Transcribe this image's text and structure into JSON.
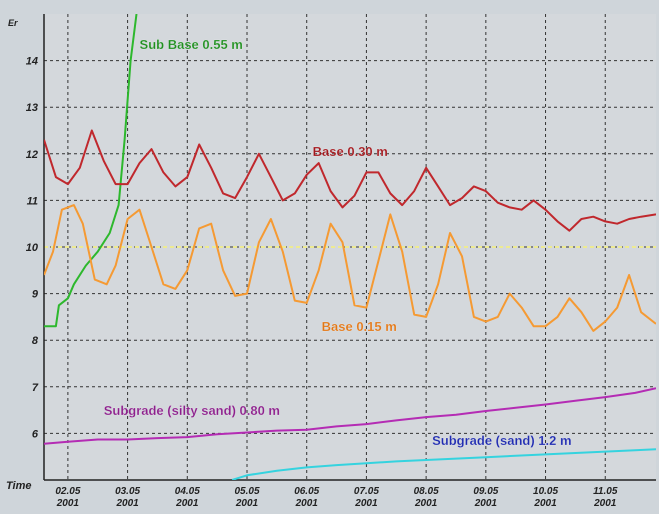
{
  "chart_data": {
    "type": "line",
    "ylabel": "Er",
    "xlabel": "Time",
    "ylim": [
      5,
      15
    ],
    "yticks": [
      6,
      7,
      8,
      9,
      10,
      11,
      12,
      13,
      14
    ],
    "x_ticks": [
      {
        "top": "02.05",
        "bottom": "2001"
      },
      {
        "top": "03.05",
        "bottom": "2001"
      },
      {
        "top": "04.05",
        "bottom": "2001"
      },
      {
        "top": "05.05",
        "bottom": "2001"
      },
      {
        "top": "06.05",
        "bottom": "2001"
      },
      {
        "top": "07.05",
        "bottom": "2001"
      },
      {
        "top": "08.05",
        "bottom": "2001"
      },
      {
        "top": "09.05",
        "bottom": "2001"
      },
      {
        "top": "10.05",
        "bottom": "2001"
      },
      {
        "top": "11.05",
        "bottom": "2001"
      }
    ],
    "xlim": [
      0.6,
      10.85
    ],
    "grid": true,
    "reference_line": {
      "y": 10,
      "color": "#f5f07a"
    },
    "series": [
      {
        "name": "Sub Base 0.55 m",
        "color": "#2db82d",
        "x": [
          0.6,
          0.8,
          0.85,
          1.0,
          1.1,
          1.3,
          1.5,
          1.7,
          1.85,
          1.95,
          2.05,
          2.15
        ],
        "y": [
          8.3,
          8.3,
          8.75,
          8.9,
          9.2,
          9.6,
          9.9,
          10.3,
          10.9,
          12.3,
          14.0,
          15.0
        ]
      },
      {
        "name": "Base 0.30 m",
        "color": "#c0282d",
        "x": [
          0.6,
          0.8,
          1.0,
          1.2,
          1.4,
          1.6,
          1.8,
          2.0,
          2.2,
          2.4,
          2.6,
          2.8,
          3.0,
          3.2,
          3.4,
          3.6,
          3.8,
          4.0,
          4.2,
          4.4,
          4.6,
          4.8,
          5.0,
          5.2,
          5.4,
          5.6,
          5.8,
          6.0,
          6.2,
          6.4,
          6.6,
          6.8,
          7.0,
          7.2,
          7.4,
          7.6,
          7.8,
          8.0,
          8.2,
          8.4,
          8.6,
          8.8,
          9.0,
          9.2,
          9.4,
          9.6,
          9.8,
          10.0,
          10.2,
          10.4,
          10.6,
          10.85
        ],
        "y": [
          12.3,
          11.5,
          11.35,
          11.7,
          12.5,
          11.85,
          11.35,
          11.35,
          11.8,
          12.1,
          11.6,
          11.3,
          11.5,
          12.2,
          11.7,
          11.15,
          11.05,
          11.5,
          12.0,
          11.5,
          11.0,
          11.15,
          11.55,
          11.8,
          11.2,
          10.85,
          11.1,
          11.6,
          11.6,
          11.15,
          10.9,
          11.2,
          11.7,
          11.3,
          10.9,
          11.05,
          11.3,
          11.2,
          10.95,
          10.85,
          10.8,
          11.0,
          10.8,
          10.55,
          10.35,
          10.6,
          10.65,
          10.55,
          10.5,
          10.6,
          10.65,
          10.7
        ]
      },
      {
        "name": "Base 0.15 m",
        "color": "#f59a33",
        "x": [
          0.6,
          0.75,
          0.9,
          1.1,
          1.25,
          1.45,
          1.65,
          1.8,
          2.0,
          2.2,
          2.4,
          2.6,
          2.8,
          3.0,
          3.2,
          3.4,
          3.6,
          3.8,
          4.0,
          4.2,
          4.4,
          4.6,
          4.8,
          5.0,
          5.2,
          5.4,
          5.6,
          5.8,
          6.0,
          6.2,
          6.4,
          6.6,
          6.8,
          7.0,
          7.2,
          7.4,
          7.6,
          7.8,
          8.0,
          8.2,
          8.4,
          8.6,
          8.8,
          9.0,
          9.2,
          9.4,
          9.6,
          9.8,
          10.0,
          10.2,
          10.4,
          10.6,
          10.85
        ],
        "y": [
          9.4,
          9.9,
          10.8,
          10.9,
          10.5,
          9.3,
          9.2,
          9.6,
          10.6,
          10.8,
          10.0,
          9.2,
          9.1,
          9.5,
          10.4,
          10.5,
          9.5,
          8.95,
          9.0,
          10.1,
          10.6,
          9.9,
          8.85,
          8.8,
          9.5,
          10.5,
          10.1,
          8.75,
          8.7,
          9.7,
          10.7,
          9.9,
          8.55,
          8.5,
          9.2,
          10.3,
          9.8,
          8.5,
          8.4,
          8.5,
          9.0,
          8.7,
          8.3,
          8.3,
          8.5,
          8.9,
          8.6,
          8.2,
          8.4,
          8.7,
          9.4,
          8.6,
          8.35
        ]
      },
      {
        "name": "Subgrade (silty sand) 0.80 m",
        "color": "#b42cb4",
        "x": [
          0.6,
          1.0,
          1.5,
          2.0,
          2.5,
          3.0,
          3.5,
          4.0,
          4.5,
          5.0,
          5.5,
          6.0,
          6.5,
          7.0,
          7.5,
          8.0,
          8.5,
          9.0,
          9.5,
          10.0,
          10.5,
          10.85
        ],
        "y": [
          5.78,
          5.82,
          5.87,
          5.87,
          5.9,
          5.92,
          5.98,
          6.02,
          6.06,
          6.08,
          6.15,
          6.2,
          6.28,
          6.35,
          6.4,
          6.48,
          6.55,
          6.62,
          6.7,
          6.78,
          6.87,
          6.97
        ]
      },
      {
        "name": "Subgrade (sand) 1.2 m",
        "color": "#35d3df",
        "x": [
          3.75,
          4.0,
          4.5,
          5.0,
          5.5,
          6.0,
          6.5,
          7.0,
          7.5,
          8.0,
          8.5,
          9.0,
          9.5,
          10.0,
          10.5,
          10.85
        ],
        "y": [
          5.0,
          5.1,
          5.2,
          5.27,
          5.32,
          5.36,
          5.4,
          5.43,
          5.46,
          5.49,
          5.52,
          5.55,
          5.58,
          5.61,
          5.64,
          5.66
        ]
      }
    ],
    "annotations": [
      {
        "text": "Sub Base 0.55 m",
        "color": "#1f8f1f",
        "x": 2.2,
        "y": 14.25
      },
      {
        "text": "Base 0.30 m",
        "color": "#a3161c",
        "x": 5.1,
        "y": 11.95
      },
      {
        "text": "Base 0.15 m",
        "color": "#e27614",
        "x": 5.25,
        "y": 8.2
      },
      {
        "text": "Subgrade (silty sand) 0.80 m",
        "color": "#8c1f8c",
        "x": 1.6,
        "y": 6.4
      },
      {
        "text": "Subgrade (sand) 1.2 m",
        "color": "#1f2bb0",
        "x": 7.1,
        "y": 5.75
      }
    ]
  }
}
